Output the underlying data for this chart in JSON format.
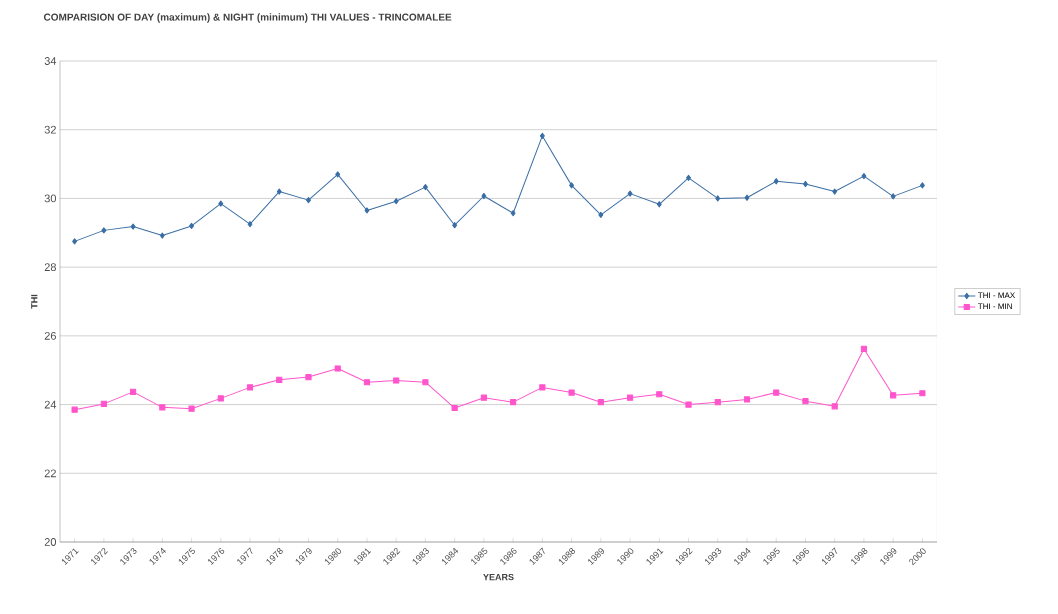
{
  "chart_data": {
    "type": "line",
    "title": "COMPARISION OF DAY (maximum) & NIGHT (minimum) THI VALUES - TRINCOMALEE",
    "xlabel": "YEARS",
    "ylabel": "THI",
    "categories": [
      "1971",
      "1972",
      "1973",
      "1974",
      "1975",
      "1976",
      "1977",
      "1978",
      "1979",
      "1980",
      "1981",
      "1982",
      "1983",
      "1984",
      "1985",
      "1986",
      "1987",
      "1988",
      "1989",
      "1990",
      "1991",
      "1992",
      "1993",
      "1994",
      "1995",
      "1996",
      "1997",
      "1998",
      "1999",
      "2000"
    ],
    "series": [
      {
        "name": "THI - MAX",
        "color": "#3a6ea5",
        "marker": "diamond",
        "values": [
          28.75,
          29.07,
          29.18,
          28.92,
          29.2,
          29.85,
          29.25,
          30.2,
          29.95,
          30.7,
          29.65,
          29.92,
          30.33,
          29.22,
          30.07,
          29.57,
          31.82,
          30.38,
          29.52,
          30.14,
          29.83,
          30.6,
          30.0,
          30.02,
          30.5,
          30.42,
          30.2,
          30.65,
          30.06,
          30.38
        ]
      },
      {
        "name": "THI - MIN",
        "color": "#ff55cc",
        "marker": "square",
        "values": [
          23.85,
          24.02,
          24.37,
          23.92,
          23.88,
          24.18,
          24.5,
          24.72,
          24.8,
          25.05,
          24.65,
          24.7,
          24.65,
          23.9,
          24.2,
          24.07,
          24.5,
          24.35,
          24.07,
          24.2,
          24.3,
          24.0,
          24.07,
          24.15,
          24.35,
          24.1,
          23.95,
          25.62,
          24.27,
          24.33
        ]
      }
    ],
    "ylim": [
      20,
      34
    ],
    "yticks": [
      20,
      22,
      24,
      26,
      28,
      30,
      32,
      34
    ],
    "grid": "y",
    "legend": "right"
  }
}
